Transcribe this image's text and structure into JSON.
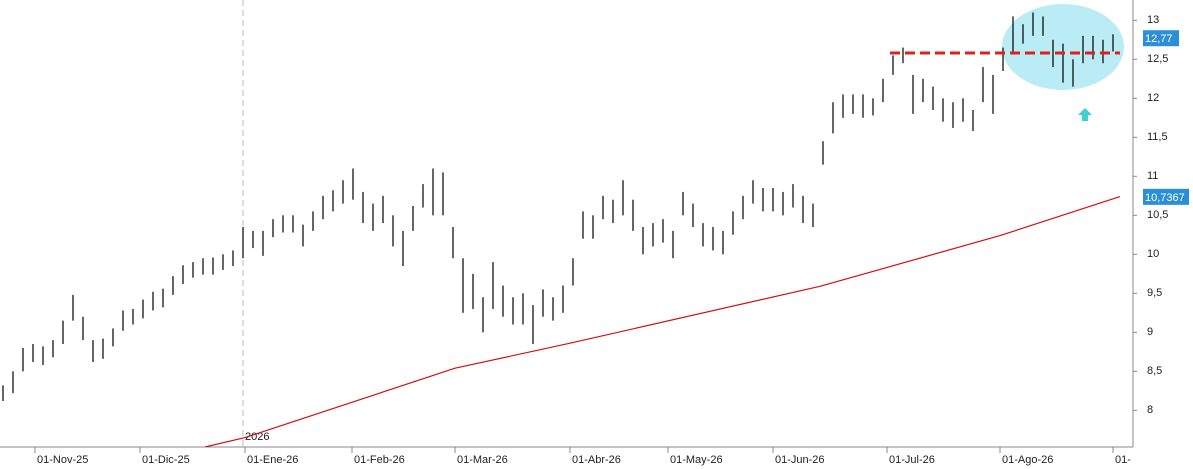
{
  "chart_data": {
    "type": "ohlc",
    "xlim": [
      -0.3,
      113
    ],
    "ylim": [
      7.53,
      13.26
    ],
    "yticks": [
      8,
      {
        "value": 8.5,
        "label": "8,5"
      },
      9,
      {
        "value": 9.5,
        "label": "9,5"
      },
      10,
      {
        "value": 10.5,
        "label": "10,5"
      },
      11,
      {
        "value": 11.5,
        "label": "11,5"
      },
      12,
      {
        "value": 12.5,
        "label": "12,5"
      },
      13
    ],
    "xticks": [
      {
        "value": 3.2,
        "label": "01-Nov-25"
      },
      {
        "value": 13.7,
        "label": "01-Dic-25"
      },
      {
        "value": 24.2,
        "label": "01-Ene-26"
      },
      {
        "value": 34.9,
        "label": "01-Feb-26"
      },
      {
        "value": 45.2,
        "label": "01-Mar-26"
      },
      {
        "value": 56.7,
        "label": "01-Abr-26"
      },
      {
        "value": 66.5,
        "label": "01-May-26"
      },
      {
        "value": 77,
        "label": "01-Jun-26"
      },
      {
        "value": 88.4,
        "label": "01-Jul-26"
      },
      {
        "value": 99.7,
        "label": "01-Ago-26"
      },
      {
        "value": 111,
        "label": "01-"
      }
    ],
    "color": "#000000",
    "x": [
      0,
      1,
      2,
      3,
      4,
      5,
      6,
      7,
      8,
      9,
      10,
      11,
      12,
      13,
      14,
      15,
      16,
      17,
      18,
      19,
      20,
      21,
      22,
      23,
      24,
      25,
      26,
      27,
      28,
      29,
      30,
      31,
      32,
      33,
      34,
      35,
      36,
      37,
      38,
      39,
      40,
      41,
      42,
      43,
      44,
      45,
      46,
      47,
      48,
      49,
      50,
      51,
      52,
      53,
      54,
      55,
      56,
      57,
      58,
      59,
      60,
      61,
      62,
      63,
      64,
      65,
      66,
      67,
      68,
      69,
      70,
      71,
      72,
      73,
      74,
      75,
      76,
      77,
      78,
      79,
      80,
      81,
      82,
      83,
      84,
      85,
      86,
      87,
      88,
      89,
      90,
      91,
      92,
      93,
      94,
      95,
      96,
      97,
      98,
      99,
      100,
      101,
      102,
      103,
      104,
      105,
      106,
      107,
      108,
      109,
      110,
      111
    ],
    "high": [
      8.32,
      8.5,
      8.8,
      8.85,
      8.82,
      8.9,
      9.15,
      9.48,
      9.2,
      8.9,
      8.92,
      9.05,
      9.28,
      9.3,
      9.42,
      9.52,
      9.56,
      9.72,
      9.86,
      9.9,
      9.95,
      9.96,
      10.0,
      10.05,
      10.35,
      10.3,
      10.3,
      10.45,
      10.5,
      10.5,
      10.38,
      10.55,
      10.75,
      10.82,
      10.95,
      11.1,
      10.8,
      10.65,
      10.75,
      10.5,
      10.3,
      10.62,
      10.9,
      11.1,
      11.05,
      10.35,
      9.95,
      9.75,
      9.45,
      9.9,
      9.6,
      9.45,
      9.5,
      9.35,
      9.55,
      9.45,
      9.6,
      9.95,
      10.55,
      10.5,
      10.75,
      10.7,
      10.95,
      10.7,
      10.35,
      10.4,
      10.45,
      10.3,
      10.8,
      10.65,
      10.4,
      10.35,
      10.3,
      10.55,
      10.75,
      10.95,
      10.85,
      10.85,
      10.8,
      10.9,
      10.75,
      10.65,
      11.45,
      11.95,
      12.05,
      12.05,
      12.05,
      12.0,
      12.25,
      12.55,
      12.65,
      12.3,
      12.25,
      12.15,
      12.0,
      11.95,
      12.0,
      11.85,
      12.4,
      12.3,
      12.65,
      13.05,
      12.95,
      13.1,
      13.05,
      12.75,
      12.7,
      12.5,
      12.8,
      12.8,
      12.75,
      12.82
    ],
    "low": [
      8.12,
      8.22,
      8.5,
      8.62,
      8.58,
      8.68,
      8.85,
      9.15,
      8.9,
      8.62,
      8.66,
      8.82,
      9.02,
      9.1,
      9.18,
      9.28,
      9.32,
      9.48,
      9.62,
      9.7,
      9.74,
      9.74,
      9.8,
      9.85,
      9.95,
      10.08,
      9.98,
      10.22,
      10.28,
      10.28,
      10.1,
      10.3,
      10.45,
      10.55,
      10.65,
      10.7,
      10.4,
      10.3,
      10.4,
      10.1,
      9.85,
      10.3,
      10.6,
      10.5,
      10.5,
      9.95,
      9.25,
      9.3,
      9.0,
      9.3,
      9.2,
      9.1,
      9.1,
      8.85,
      9.2,
      9.15,
      9.25,
      9.6,
      10.2,
      10.2,
      10.45,
      10.4,
      10.5,
      10.3,
      10.0,
      10.1,
      10.15,
      9.95,
      10.5,
      10.35,
      10.1,
      10.05,
      10.0,
      10.25,
      10.45,
      10.65,
      10.55,
      10.55,
      10.5,
      10.6,
      10.4,
      10.35,
      11.15,
      11.55,
      11.75,
      11.8,
      11.75,
      11.78,
      11.95,
      12.3,
      12.45,
      11.8,
      11.95,
      11.85,
      11.7,
      11.62,
      11.7,
      11.58,
      11.95,
      11.8,
      12.35,
      12.6,
      12.7,
      12.8,
      12.8,
      12.4,
      12.2,
      12.15,
      12.45,
      12.5,
      12.45,
      12.6
    ],
    "moving_average": {
      "color": "#d01010",
      "x": [
        20.2,
        24.2,
        45.2,
        56.7,
        81.7,
        99.7,
        111.7
      ],
      "values": [
        7.53,
        7.65,
        8.54,
        8.86,
        9.59,
        10.24,
        10.74
      ]
    },
    "last_price": {
      "value": 12.77,
      "label": "12,77"
    },
    "ma_last": {
      "value": 10.7367,
      "label": "10,7367"
    },
    "resistance": {
      "value": 12.58,
      "x": [
        88.7,
        111.7
      ],
      "color": "#e02020"
    },
    "year_marker": {
      "x": 24,
      "label": "2026"
    }
  }
}
